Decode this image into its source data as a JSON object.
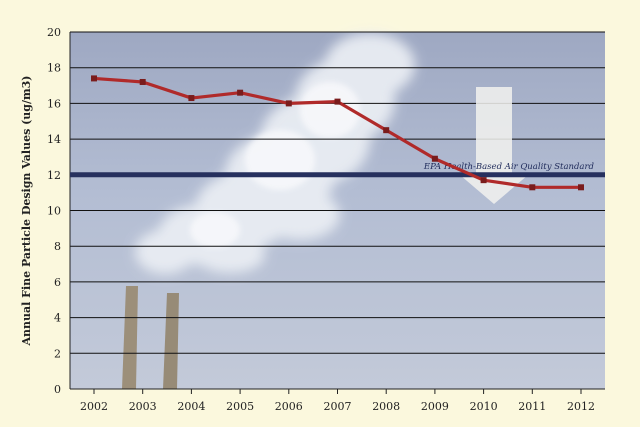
{
  "chart_data": {
    "type": "line",
    "title": "",
    "xlabel": "",
    "ylabel": "Annual Fine Particle Design Values (ug/m3)",
    "categories": [
      "2002",
      "2003",
      "2004",
      "2005",
      "2006",
      "2007",
      "2008",
      "2009",
      "2010",
      "2011",
      "2012"
    ],
    "series": [
      {
        "values": [
          17.4,
          17.2,
          16.3,
          16.6,
          16.0,
          16.1,
          14.5,
          12.9,
          11.7,
          11.3,
          11.3
        ]
      }
    ],
    "ylim": [
      0,
      20
    ],
    "yticks": [
      "0",
      "2",
      "4",
      "6",
      "8",
      "10",
      "12",
      "14",
      "16",
      "18",
      "20"
    ],
    "grid": "horizontal",
    "reference_line": {
      "value": 12,
      "label": "EPA Health-Based Air Quality Standard"
    },
    "colors": {
      "series": "#b02a2a",
      "reference": "#26305e",
      "background": "#fbf8dd",
      "grid": "#111111"
    }
  }
}
